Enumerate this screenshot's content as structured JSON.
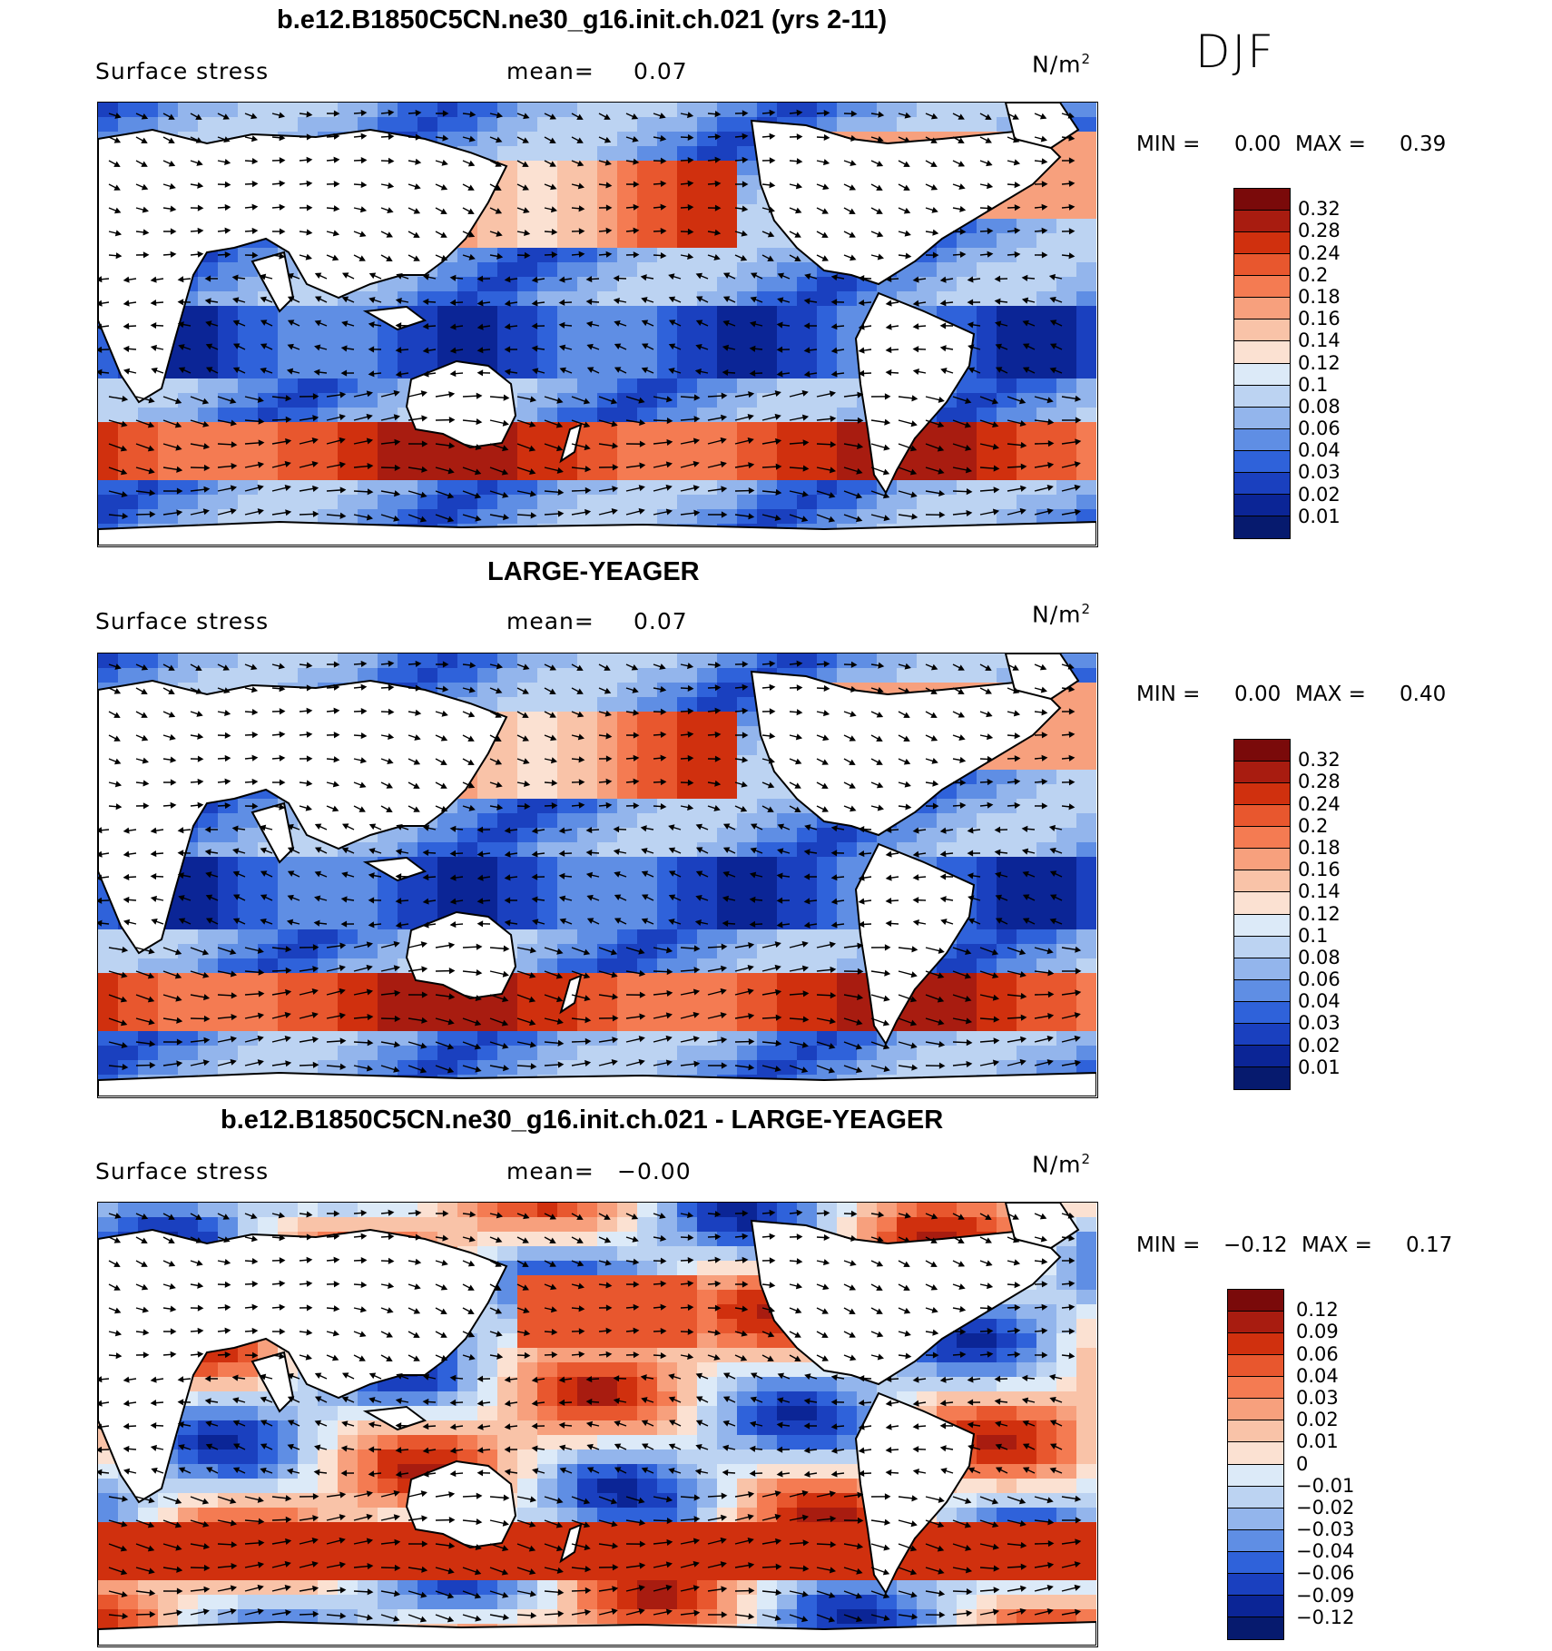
{
  "season": "DJF",
  "panels": [
    {
      "title": "b.e12.B1850C5CN.ne30_g16.init.ch.021 (yrs 2-11)",
      "variable": "Surface stress",
      "mean_label": "mean=",
      "mean_value": "0.07",
      "units": "N/m",
      "units_sup": "2",
      "min_label": "MIN =",
      "min_value": "0.00",
      "max_label": "MAX =",
      "max_value": "0.39",
      "colorbar_ticks": [
        "0.32",
        "0.28",
        "0.24",
        "0.2",
        "0.18",
        "0.16",
        "0.14",
        "0.12",
        "0.1",
        "0.08",
        "0.06",
        "0.04",
        "0.03",
        "0.02",
        "0.01"
      ]
    },
    {
      "title": "LARGE-YEAGER",
      "variable": "Surface stress",
      "mean_label": "mean=",
      "mean_value": "0.07",
      "units": "N/m",
      "units_sup": "2",
      "min_label": "MIN =",
      "min_value": "0.00",
      "max_label": "MAX =",
      "max_value": "0.40",
      "colorbar_ticks": [
        "0.32",
        "0.28",
        "0.24",
        "0.2",
        "0.18",
        "0.16",
        "0.14",
        "0.12",
        "0.1",
        "0.08",
        "0.06",
        "0.04",
        "0.03",
        "0.02",
        "0.01"
      ]
    },
    {
      "title": "b.e12.B1850C5CN.ne30_g16.init.ch.021 - LARGE-YEAGER",
      "variable": "Surface stress",
      "mean_label": "mean=",
      "mean_value": "−0.00",
      "units": "N/m",
      "units_sup": "2",
      "min_label": "MIN =",
      "min_value": "−0.12",
      "max_label": "MAX =",
      "max_value": "0.17",
      "colorbar_ticks": [
        "0.12",
        "0.09",
        "0.06",
        "0.04",
        "0.03",
        "0.02",
        "0.01",
        "0",
        "−0.01",
        "−0.02",
        "−0.03",
        "−0.04",
        "−0.06",
        "−0.09",
        "−0.12"
      ]
    }
  ],
  "colors": {
    "abs_scale": [
      "#7a0a0a",
      "#a81c10",
      "#d0300e",
      "#e8572e",
      "#f47b52",
      "#f7a07d",
      "#f9c3a8",
      "#fbe1d2",
      "#dceaf8",
      "#bcd3f2",
      "#93b5ec",
      "#5f8ee4",
      "#2f62da",
      "#1a40bf",
      "#0b2596",
      "#061a6e"
    ],
    "diff_scale": [
      "#7a0a0a",
      "#a81c10",
      "#d0300e",
      "#e8572e",
      "#f47b52",
      "#f7a07d",
      "#f9c3a8",
      "#fbe1d2",
      "#dceaf8",
      "#bcd3f2",
      "#93b5ec",
      "#5f8ee4",
      "#2f62da",
      "#1a40bf",
      "#0b2596",
      "#061a6e"
    ],
    "land": "#ffffff",
    "coast": "#000000"
  }
}
